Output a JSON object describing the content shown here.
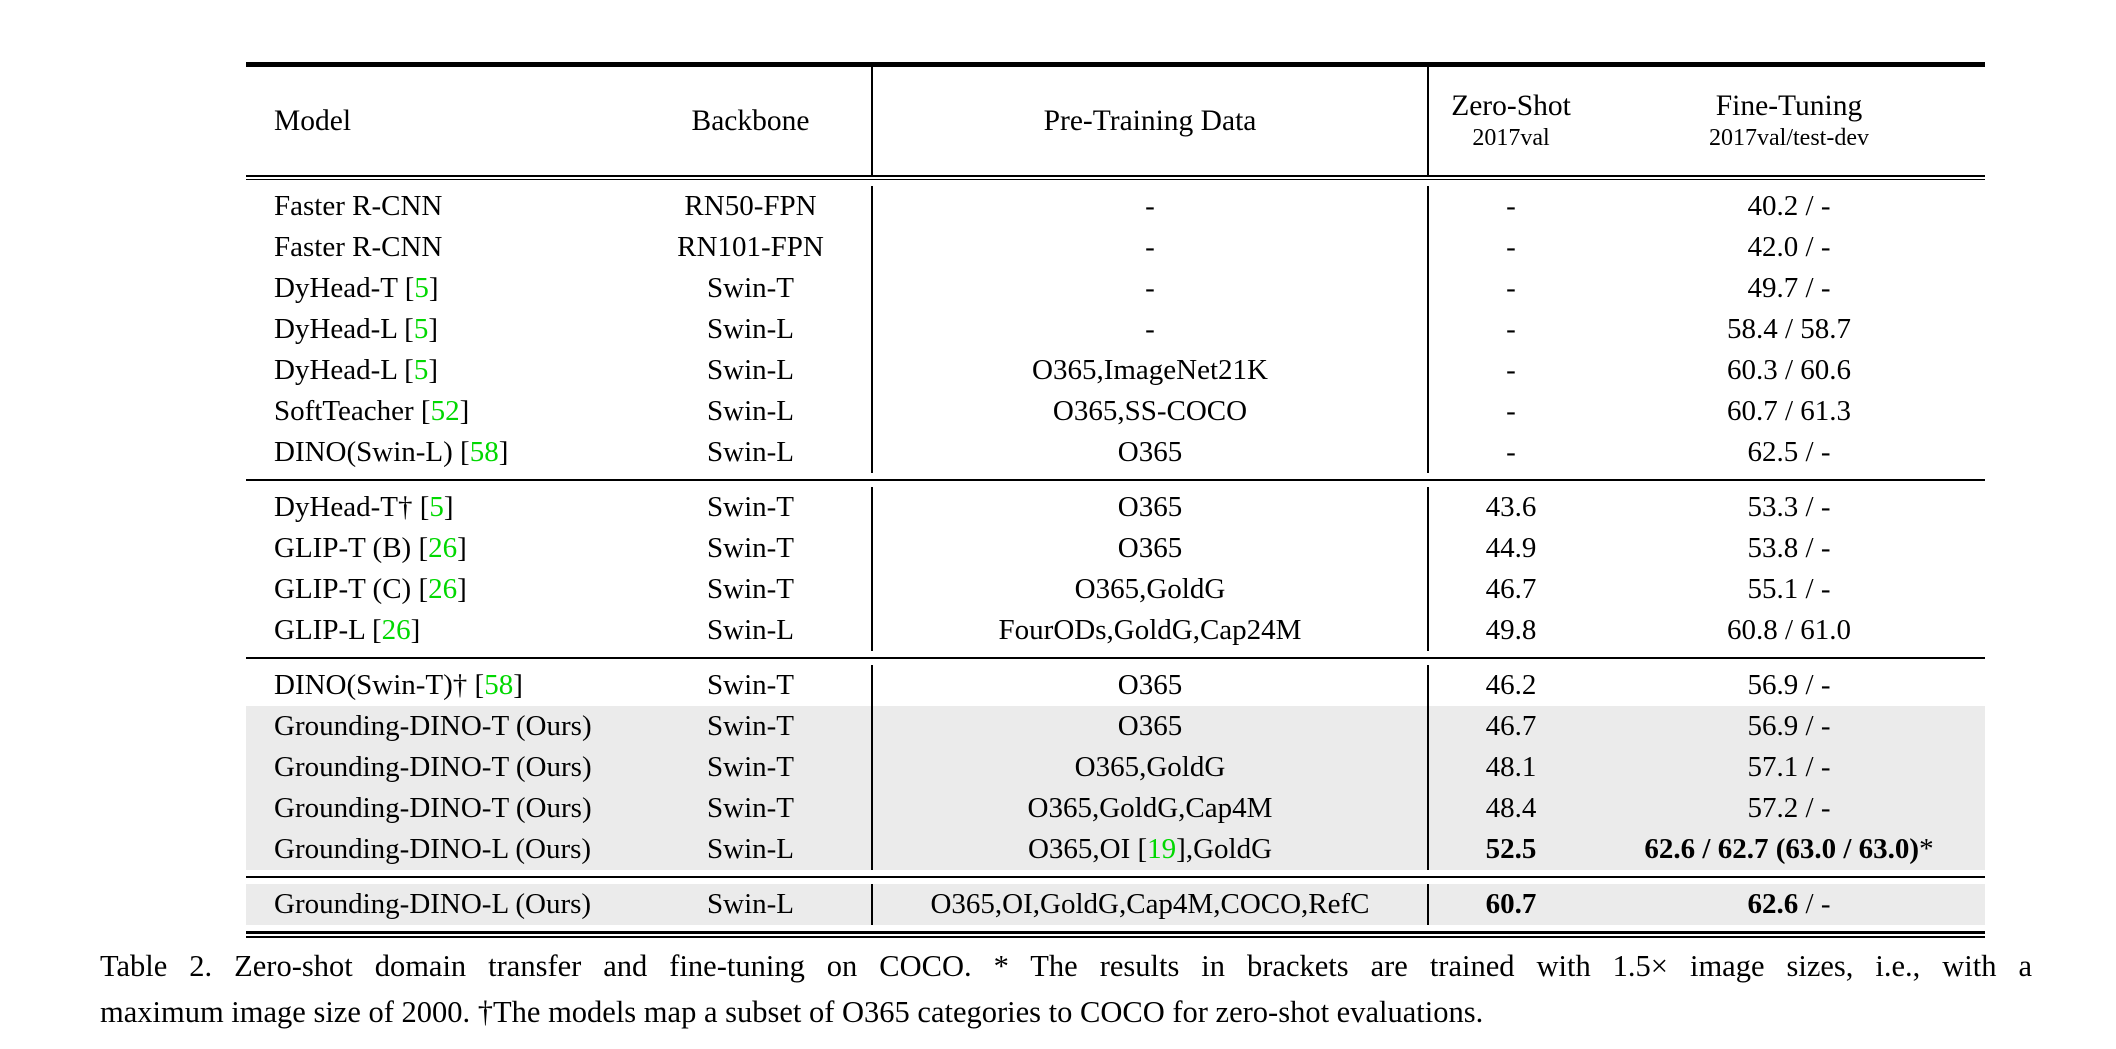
{
  "colors": {
    "cite_green": "#00d800",
    "row_shade": "#ebebeb",
    "rule_black": "#000000"
  },
  "table": {
    "header": {
      "model": "Model",
      "backbone": "Backbone",
      "pretrain": "Pre-Training Data",
      "zero_shot": {
        "line1": "Zero-Shot",
        "line2": "2017val"
      },
      "fine_tuning": {
        "line1": "Fine-Tuning",
        "line2": "2017val/test-dev"
      }
    },
    "groups": [
      {
        "rows": [
          {
            "model": "Faster R-CNN",
            "backbone": "RN50-FPN",
            "pretrain": "-",
            "zero_shot": "-",
            "fine_tuning": "40.2 / -",
            "shaded": false
          },
          {
            "model": "Faster R-CNN",
            "backbone": "RN101-FPN",
            "pretrain": "-",
            "zero_shot": "-",
            "fine_tuning": "42.0 / -",
            "shaded": false
          },
          {
            "model": "DyHead-T [[5]]",
            "backbone": "Swin-T",
            "pretrain": "-",
            "zero_shot": "-",
            "fine_tuning": "49.7 / -",
            "shaded": false
          },
          {
            "model": "DyHead-L [[5]]",
            "backbone": "Swin-L",
            "pretrain": "-",
            "zero_shot": "-",
            "fine_tuning": "58.4 / 58.7",
            "shaded": false
          },
          {
            "model": "DyHead-L [[5]]",
            "backbone": "Swin-L",
            "pretrain": "O365,ImageNet21K",
            "zero_shot": "-",
            "fine_tuning": "60.3 / 60.6",
            "shaded": false
          },
          {
            "model": "SoftTeacher [[52]]",
            "backbone": "Swin-L",
            "pretrain": "O365,SS-COCO",
            "zero_shot": "-",
            "fine_tuning": "60.7 / 61.3",
            "shaded": false
          },
          {
            "model": "DINO(Swin-L) [[58]]",
            "backbone": "Swin-L",
            "pretrain": "O365",
            "zero_shot": "-",
            "fine_tuning": "62.5 / -",
            "shaded": false
          }
        ]
      },
      {
        "rows": [
          {
            "model": "DyHead-T† [[5]]",
            "backbone": "Swin-T",
            "pretrain": "O365",
            "zero_shot": "43.6",
            "fine_tuning": "53.3 / -",
            "shaded": false
          },
          {
            "model": "GLIP-T (B) [[26]]",
            "backbone": "Swin-T",
            "pretrain": "O365",
            "zero_shot": "44.9",
            "fine_tuning": "53.8 / -",
            "shaded": false
          },
          {
            "model": "GLIP-T (C) [[26]]",
            "backbone": "Swin-T",
            "pretrain": "O365,GoldG",
            "zero_shot": "46.7",
            "fine_tuning": "55.1 / -",
            "shaded": false
          },
          {
            "model": "GLIP-L [[26]]",
            "backbone": "Swin-L",
            "pretrain": "FourODs,GoldG,Cap24M",
            "zero_shot": "49.8",
            "fine_tuning": "60.8 / 61.0",
            "shaded": false
          }
        ]
      },
      {
        "rows": [
          {
            "model": "DINO(Swin-T)† [[58]]",
            "backbone": "Swin-T",
            "pretrain": "O365",
            "zero_shot": "46.2",
            "fine_tuning": "56.9 / -",
            "shaded": false
          },
          {
            "model": "Grounding-DINO-T (Ours)",
            "backbone": "Swin-T",
            "pretrain": "O365",
            "zero_shot": "46.7",
            "fine_tuning": "56.9 / -",
            "shaded": true
          },
          {
            "model": "Grounding-DINO-T (Ours)",
            "backbone": "Swin-T",
            "pretrain": "O365,GoldG",
            "zero_shot": "48.1",
            "fine_tuning": "57.1 / -",
            "shaded": true
          },
          {
            "model": "Grounding-DINO-T (Ours)",
            "backbone": "Swin-T",
            "pretrain": "O365,GoldG,Cap4M",
            "zero_shot": "48.4",
            "fine_tuning": "57.2 / -",
            "shaded": true
          },
          {
            "model": "Grounding-DINO-L (Ours)",
            "backbone": "Swin-L",
            "pretrain": "O365,OI [[19]],GoldG",
            "zero_shot": "**52.5**",
            "fine_tuning": "**62.6 / 62.7 (63.0 / 63.0)***",
            "shaded": true
          }
        ]
      },
      {
        "rows": [
          {
            "model": "Grounding-DINO-L (Ours)",
            "backbone": "Swin-L",
            "pretrain": "O365,OI,GoldG,Cap4M,COCO,RefC",
            "zero_shot": "**60.7**",
            "fine_tuning": "**62.6** / -",
            "shaded": true
          }
        ]
      }
    ]
  },
  "caption": {
    "line1": "Table 2.  Zero-shot domain transfer and fine-tuning on COCO. * The results in brackets are trained with 1.5× image sizes, i.e., with a",
    "line2": "maximum image size of 2000. †The models map a subset of O365 categories to COCO for zero-shot evaluations."
  }
}
